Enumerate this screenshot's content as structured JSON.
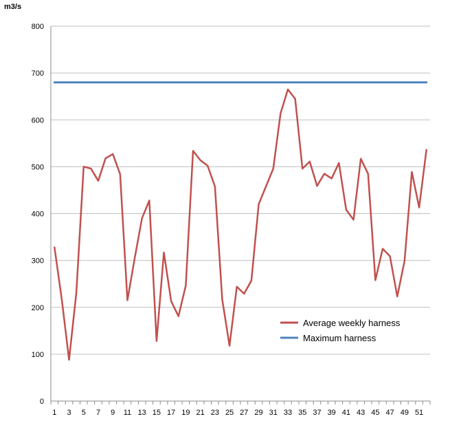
{
  "chart_data": {
    "type": "line",
    "title": "",
    "xlabel": "",
    "ylabel": "m3/s",
    "ylim": [
      0,
      800
    ],
    "yticks": [
      0,
      100,
      200,
      300,
      400,
      500,
      600,
      700,
      800
    ],
    "xticks_shown": [
      "1",
      "3",
      "5",
      "7",
      "9",
      "11",
      "13",
      "15",
      "17",
      "19",
      "21",
      "23",
      "25",
      "27",
      "29",
      "31",
      "33",
      "35",
      "37",
      "39",
      "41",
      "43",
      "45",
      "47",
      "49",
      "51"
    ],
    "grid": "horizontal",
    "legend": "bottom-right",
    "x": [
      1,
      2,
      3,
      4,
      5,
      6,
      7,
      8,
      9,
      10,
      11,
      12,
      13,
      14,
      15,
      16,
      17,
      18,
      19,
      20,
      21,
      22,
      23,
      24,
      25,
      26,
      27,
      28,
      29,
      30,
      31,
      32,
      33,
      34,
      35,
      36,
      37,
      38,
      39,
      40,
      41,
      42,
      43,
      44,
      45,
      46,
      47,
      48,
      49,
      50,
      51,
      52
    ],
    "series": [
      {
        "name": "Average weekly harness",
        "color": "#c0504d",
        "values": [
          328,
          217,
          88,
          232,
          500,
          496,
          470,
          518,
          527,
          484,
          215,
          305,
          390,
          428,
          128,
          317,
          213,
          181,
          246,
          534,
          514,
          502,
          458,
          217,
          118,
          244,
          229,
          257,
          420,
          458,
          496,
          614,
          665,
          645,
          496,
          511,
          459,
          485,
          475,
          508,
          408,
          387,
          517,
          485,
          258,
          325,
          309,
          223,
          299,
          489,
          413,
          536
        ]
      },
      {
        "name": "Maximum harness",
        "color": "#4f81bd",
        "values": [
          680,
          680,
          680,
          680,
          680,
          680,
          680,
          680,
          680,
          680,
          680,
          680,
          680,
          680,
          680,
          680,
          680,
          680,
          680,
          680,
          680,
          680,
          680,
          680,
          680,
          680,
          680,
          680,
          680,
          680,
          680,
          680,
          680,
          680,
          680,
          680,
          680,
          680,
          680,
          680,
          680,
          680,
          680,
          680,
          680,
          680,
          680,
          680,
          680,
          680,
          680,
          680
        ]
      }
    ]
  }
}
